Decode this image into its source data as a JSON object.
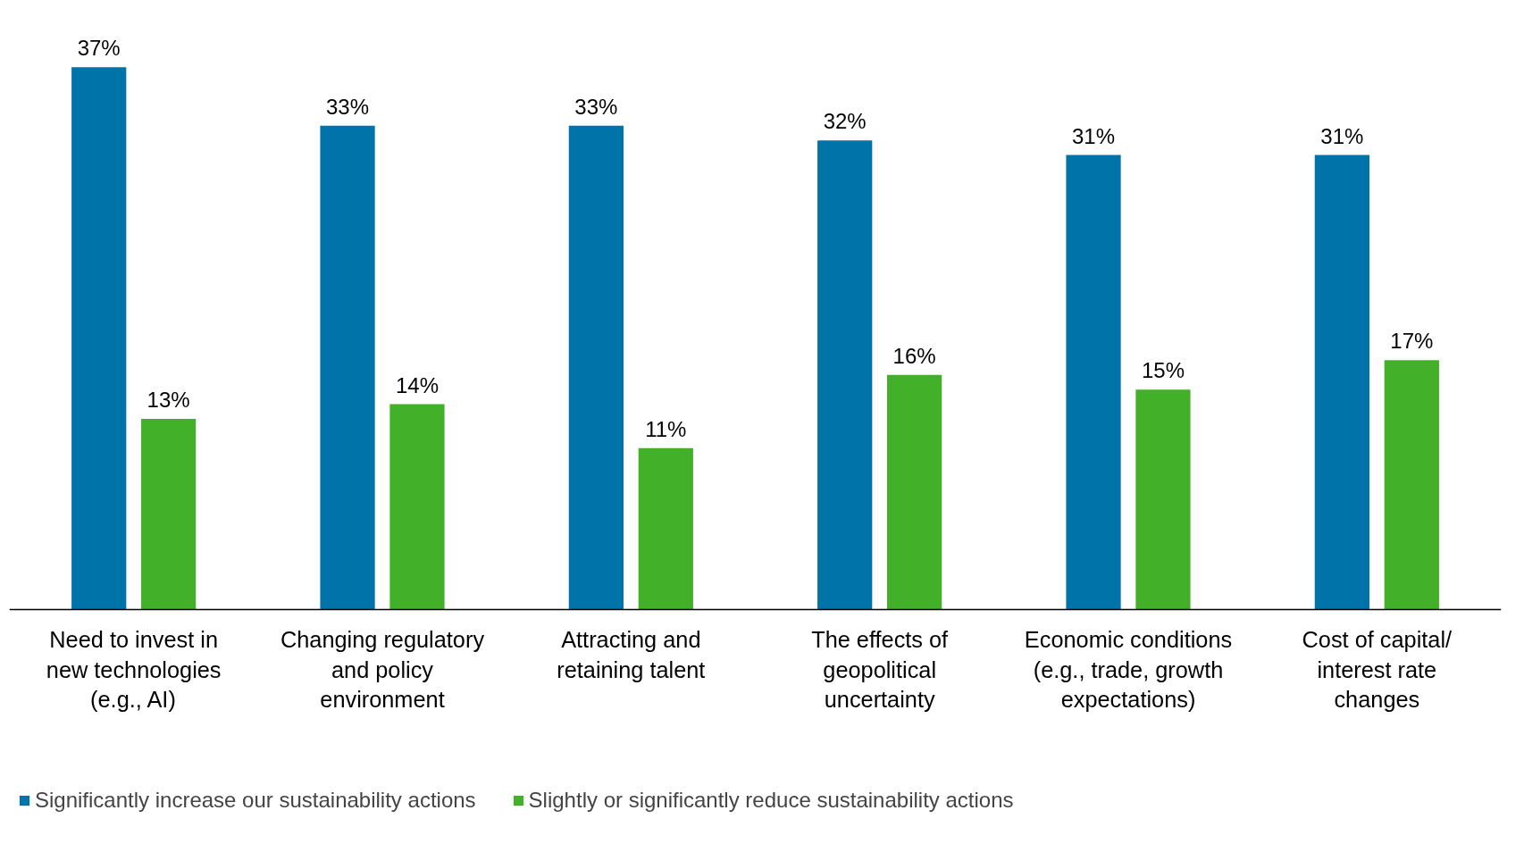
{
  "chart_data": {
    "type": "bar",
    "categories": [
      "Need to invest in new technologies (e.g., AI)",
      "Changing regulatory and policy environment",
      "Attracting and retaining talent",
      "The effects of geopolitical uncertainty",
      "Economic conditions (e.g., trade, growth expectations)",
      "Cost of capital/ interest rate changes"
    ],
    "series": [
      {
        "name": "Significantly increase our sustainability actions",
        "color": "#0073a8",
        "values": [
          37,
          33,
          33,
          32,
          31,
          31
        ],
        "value_labels": [
          "37%",
          "33%",
          "33%",
          "32%",
          "31%",
          "31%"
        ]
      },
      {
        "name": "Slightly or significantly reduce sustainability actions",
        "color": "#43b02a",
        "values": [
          13,
          14,
          11,
          16,
          15,
          17
        ],
        "value_labels": [
          "13%",
          "14%",
          "11%",
          "16%",
          "15%",
          "17%"
        ]
      }
    ],
    "legend": "bottom left",
    "grid": false
  }
}
